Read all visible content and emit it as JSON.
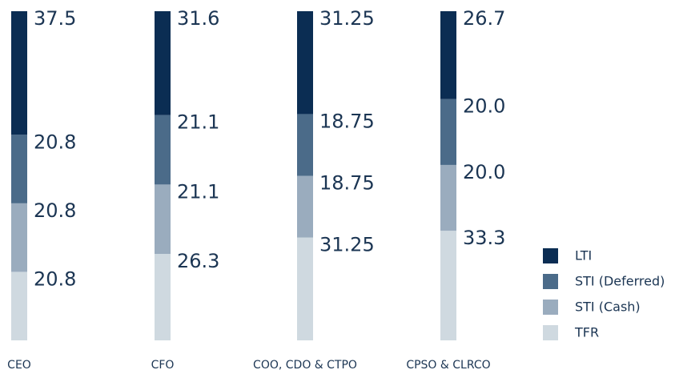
{
  "chart_data": {
    "type": "stacked_bar",
    "categories": [
      "CEO",
      "CFO",
      "COO, CDO & CTPO",
      "CPSO & CLRCO"
    ],
    "series": [
      {
        "name": "TFR",
        "color": "#cfd9e0",
        "values": [
          20.8,
          26.3,
          31.25,
          33.3
        ],
        "value_labels": [
          "20.8",
          "26.3",
          "31.25",
          "33.3"
        ]
      },
      {
        "name": "STI (Cash)",
        "color": "#9aacbe",
        "values": [
          20.8,
          21.1,
          18.75,
          20
        ],
        "value_labels": [
          "20.8",
          "21.1",
          "18.75",
          "20.0"
        ]
      },
      {
        "name": "STI (Deferred)",
        "color": "#4b6b89",
        "values": [
          20.8,
          21.1,
          18.75,
          20
        ],
        "value_labels": [
          "20.8",
          "21.1",
          "18.75",
          "20.0"
        ]
      },
      {
        "name": "LTI",
        "color": "#0b2d53",
        "values": [
          37.5,
          31.6,
          31.25,
          26.7
        ],
        "value_labels": [
          "37.5",
          "31.6",
          "31.25",
          "26.7"
        ]
      }
    ],
    "legend": "bottom-right"
  }
}
